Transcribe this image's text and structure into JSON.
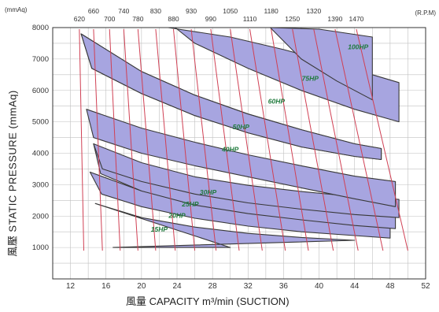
{
  "chart_data": {
    "type": "area",
    "ylabel": "風壓  STATIC  PRESSURE  (mmAq)",
    "xlabel": "風量  CAPACITY  m³/min  (SUCTION)",
    "y_unit": "(mmAq)",
    "rpm_unit": "(R.P.M)",
    "xlim": [
      10,
      52
    ],
    "ylim": [
      0,
      8000
    ],
    "x_ticks": [
      12,
      16,
      20,
      24,
      28,
      32,
      36,
      40,
      44,
      48,
      52
    ],
    "y_ticks": [
      1000,
      2000,
      3000,
      4000,
      5000,
      6000,
      7000,
      8000
    ],
    "grid": true,
    "rpm_row1": [
      "660",
      "740",
      "830",
      "930",
      "1050",
      "1180",
      "1320"
    ],
    "rpm_row2": [
      "620",
      "700",
      "780",
      "880",
      "990",
      "1110",
      "1250",
      "1390",
      "1470"
    ],
    "rpm_lines": [
      {
        "rpm": "620",
        "x_top": 13.0,
        "x_bottom": 13.5
      },
      {
        "rpm": "660",
        "x_top": 14.6,
        "x_bottom": 15.6
      },
      {
        "rpm": "700",
        "x_top": 16.4,
        "x_bottom": 17.6
      },
      {
        "rpm": "740",
        "x_top": 18.0,
        "x_bottom": 19.6
      },
      {
        "rpm": "780",
        "x_top": 19.6,
        "x_bottom": 21.6
      },
      {
        "rpm": "830",
        "x_top": 21.6,
        "x_bottom": 23.8
      },
      {
        "rpm": "880",
        "x_top": 23.6,
        "x_bottom": 26.0
      },
      {
        "rpm": "930",
        "x_top": 25.6,
        "x_bottom": 28.4
      },
      {
        "rpm": "990",
        "x_top": 27.8,
        "x_bottom": 31.0
      },
      {
        "rpm": "1050",
        "x_top": 30.0,
        "x_bottom": 33.6
      },
      {
        "rpm": "1110",
        "x_top": 32.2,
        "x_bottom": 36.2
      },
      {
        "rpm": "1180",
        "x_top": 34.6,
        "x_bottom": 38.8
      },
      {
        "rpm": "1250",
        "x_top": 37.0,
        "x_bottom": 41.6
      },
      {
        "rpm": "1320",
        "x_top": 39.4,
        "x_bottom": 44.4
      },
      {
        "rpm": "1390",
        "x_top": 41.8,
        "x_bottom": 47.2
      },
      {
        "rpm": "1470",
        "x_top": 44.2,
        "x_bottom": 50.0
      }
    ],
    "series": [
      {
        "name": "15HP",
        "label_at": [
          22,
          1580
        ],
        "upper": [
          [
            14.8,
            2400
          ],
          [
            20,
            1950
          ],
          [
            26,
            1650
          ],
          [
            32,
            1450
          ],
          [
            38,
            1320
          ],
          [
            44,
            1230
          ]
        ],
        "lower": [
          [
            16.8,
            1000
          ],
          [
            20,
            1000
          ],
          [
            24,
            1000
          ],
          [
            30,
            1000
          ]
        ]
      },
      {
        "name": "20HP",
        "label_at": [
          24,
          2020
        ],
        "upper": [
          [
            14.2,
            3400
          ],
          [
            20,
            2800
          ],
          [
            26,
            2400
          ],
          [
            32,
            2150
          ],
          [
            38,
            1980
          ],
          [
            44,
            1850
          ],
          [
            48,
            1780
          ]
        ],
        "lower": [
          [
            48,
            1300
          ],
          [
            44,
            1380
          ],
          [
            38,
            1500
          ],
          [
            32,
            1680
          ],
          [
            26,
            1930
          ],
          [
            20,
            2300
          ],
          [
            15.5,
            2700
          ]
        ]
      },
      {
        "name": "25HP",
        "label_at": [
          25.5,
          2380
        ],
        "upper": [
          [
            14.6,
            4300
          ],
          [
            20,
            3400
          ],
          [
            26,
            2950
          ],
          [
            32,
            2700
          ],
          [
            38,
            2500
          ],
          [
            44,
            2350
          ],
          [
            48.6,
            2250
          ]
        ],
        "lower": [
          [
            48.6,
            1600
          ],
          [
            44,
            1700
          ],
          [
            38,
            1880
          ],
          [
            32,
            2080
          ],
          [
            26,
            2350
          ],
          [
            20,
            2800
          ],
          [
            15.4,
            3350
          ]
        ]
      },
      {
        "name": "30HP",
        "label_at": [
          27.5,
          2760
        ],
        "upper": [
          [
            14.6,
            4300
          ],
          [
            20,
            3700
          ],
          [
            26,
            3250
          ],
          [
            32,
            2980
          ],
          [
            38,
            2780
          ],
          [
            44,
            2620
          ],
          [
            49,
            2530
          ]
        ],
        "lower": [
          [
            49,
            1950
          ],
          [
            44,
            2050
          ],
          [
            38,
            2220
          ],
          [
            32,
            2420
          ],
          [
            26,
            2700
          ],
          [
            20,
            3100
          ],
          [
            15.6,
            3500
          ]
        ]
      },
      {
        "name": "40HP",
        "label_at": [
          30,
          4120
        ],
        "upper": [
          [
            13.8,
            5400
          ],
          [
            20,
            4800
          ],
          [
            26,
            4350
          ],
          [
            32,
            3950
          ],
          [
            38,
            3600
          ],
          [
            44,
            3270
          ],
          [
            48.6,
            3100
          ]
        ],
        "lower": [
          [
            48.6,
            2300
          ],
          [
            44,
            2550
          ],
          [
            38,
            2900
          ],
          [
            32,
            3250
          ],
          [
            26,
            3600
          ],
          [
            20,
            4000
          ],
          [
            14.6,
            4500
          ]
        ]
      },
      {
        "name": "50HP",
        "label_at": [
          31.2,
          4840
        ],
        "upper": [
          [
            13.2,
            7800
          ],
          [
            20,
            6600
          ],
          [
            26,
            5850
          ],
          [
            32,
            5250
          ],
          [
            38,
            4750
          ],
          [
            44,
            4300
          ],
          [
            47,
            4150
          ]
        ],
        "lower": [
          [
            47,
            3800
          ],
          [
            44,
            3900
          ],
          [
            38,
            4200
          ],
          [
            32,
            4650
          ],
          [
            26,
            5200
          ],
          [
            20,
            5900
          ],
          [
            14.4,
            6700
          ]
        ]
      },
      {
        "name": "60HP",
        "label_at": [
          35.2,
          5650
        ],
        "upper": [
          [
            13.2,
            7800
          ],
          [
            20,
            6600
          ],
          [
            26,
            5850
          ],
          [
            32,
            5250
          ],
          [
            38,
            4750
          ],
          [
            44,
            4300
          ],
          [
            47,
            4150
          ]
        ],
        "lower": [
          [
            47,
            3800
          ],
          [
            44,
            3900
          ],
          [
            38,
            4200
          ],
          [
            32,
            4650
          ],
          [
            26,
            5200
          ],
          [
            20,
            5900
          ],
          [
            14.4,
            6700
          ]
        ]
      },
      {
        "name": "75HP",
        "label_at": [
          39,
          6380
        ],
        "upper": [
          [
            23,
            8000
          ],
          [
            30,
            7700
          ],
          [
            36,
            7300
          ],
          [
            42,
            6850
          ],
          [
            46,
            6500
          ],
          [
            49,
            6250
          ]
        ],
        "lower": [
          [
            49,
            5000
          ],
          [
            44,
            5400
          ],
          [
            38,
            6000
          ],
          [
            32,
            6700
          ],
          [
            26,
            7500
          ],
          [
            23.8,
            8000
          ]
        ]
      },
      {
        "name": "100HP",
        "label_at": [
          44.4,
          7380
        ],
        "upper": [
          [
            34.5,
            8000
          ],
          [
            40,
            7950
          ],
          [
            46,
            7700
          ]
        ],
        "lower": [
          [
            46,
            5700
          ],
          [
            42,
            6300
          ],
          [
            38,
            7000
          ],
          [
            34.5,
            8000
          ]
        ]
      }
    ],
    "colors": {
      "band": "#a7a5e0",
      "band_edge": "#383838",
      "rpm_line": "#d04054",
      "grid": "#c0c0c0",
      "label": "#1f7a3c",
      "axis": "#333333"
    }
  }
}
